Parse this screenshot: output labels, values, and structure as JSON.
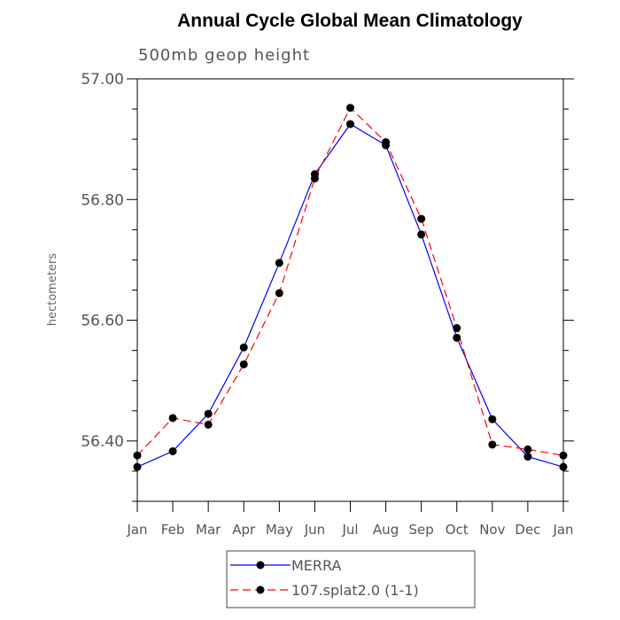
{
  "chart_data": {
    "type": "line",
    "title": "Annual Cycle Global Mean Climatology",
    "subtitle": "500mb geop height",
    "ylabel": "hectometers",
    "xlabel": "",
    "categories": [
      "Jan",
      "Feb",
      "Mar",
      "Apr",
      "May",
      "Jun",
      "Jul",
      "Aug",
      "Sep",
      "Oct",
      "Nov",
      "Dec",
      "Jan"
    ],
    "ylim": [
      56.3,
      57.0
    ],
    "yticks": [
      56.4,
      56.6,
      56.8,
      57.0
    ],
    "ytick_labels": [
      "56.40",
      "56.60",
      "56.80",
      "57.00"
    ],
    "grid": false,
    "legend_position": "bottom-center",
    "series": [
      {
        "name": "MERRA",
        "color": "#0000ff",
        "line_style": "solid",
        "values": [
          56.357,
          56.383,
          56.445,
          56.555,
          56.695,
          56.842,
          56.925,
          56.89,
          56.742,
          56.571,
          56.436,
          56.374,
          56.357
        ]
      },
      {
        "name": "107.splat2.0 (1-1)",
        "color": "#ff0000",
        "line_style": "dashed",
        "values": [
          56.376,
          56.438,
          56.427,
          56.527,
          56.645,
          56.835,
          56.952,
          56.895,
          56.768,
          56.587,
          56.394,
          56.386,
          56.376
        ]
      }
    ]
  }
}
